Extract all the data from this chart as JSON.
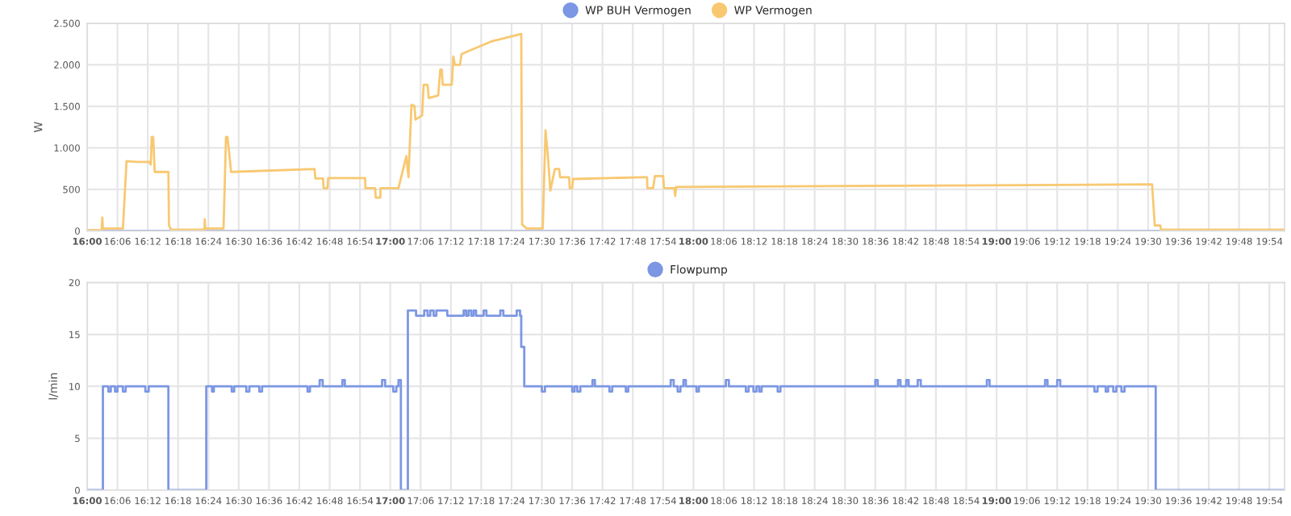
{
  "chart_data": [
    {
      "type": "line",
      "ylabel": "W",
      "ylim": [
        0,
        2500
      ],
      "yticks": [
        0,
        {
          "value": 500,
          "label": "500"
        },
        {
          "value": 1000,
          "label": "1.000"
        },
        {
          "value": 1500,
          "label": "1.500"
        },
        {
          "value": 2000,
          "label": "2.000"
        },
        {
          "value": 2500,
          "label": "2.500"
        }
      ],
      "xlim": [
        16,
        19.95
      ],
      "xticks": [
        {
          "value": 16.0,
          "label": "16:00"
        },
        {
          "value": 16.1,
          "label": "16:06"
        },
        {
          "value": 16.2,
          "label": "16:12"
        },
        {
          "value": 16.3,
          "label": "16:18"
        },
        {
          "value": 16.4,
          "label": "16:24"
        },
        {
          "value": 16.5,
          "label": "16:30"
        },
        {
          "value": 16.6,
          "label": "16:36"
        },
        {
          "value": 16.7,
          "label": "16:42"
        },
        {
          "value": 16.8,
          "label": "16:48"
        },
        {
          "value": 16.9,
          "label": "16:54"
        },
        {
          "value": 17.0,
          "label": "17:00"
        },
        {
          "value": 17.1,
          "label": "17:06"
        },
        {
          "value": 17.2,
          "label": "17:12"
        },
        {
          "value": 17.3,
          "label": "17:18"
        },
        {
          "value": 17.4,
          "label": "17:24"
        },
        {
          "value": 17.5,
          "label": "17:30"
        },
        {
          "value": 17.6,
          "label": "17:36"
        },
        {
          "value": 17.7,
          "label": "17:42"
        },
        {
          "value": 17.8,
          "label": "17:48"
        },
        {
          "value": 17.9,
          "label": "17:54"
        },
        {
          "value": 18.0,
          "label": "18:00"
        },
        {
          "value": 18.1,
          "label": "18:06"
        },
        {
          "value": 18.2,
          "label": "18:12"
        },
        {
          "value": 18.3,
          "label": "18:18"
        },
        {
          "value": 18.4,
          "label": "18:24"
        },
        {
          "value": 18.5,
          "label": "18:30"
        },
        {
          "value": 18.6,
          "label": "18:36"
        },
        {
          "value": 18.7,
          "label": "18:42"
        },
        {
          "value": 18.8,
          "label": "18:48"
        },
        {
          "value": 18.9,
          "label": "18:54"
        },
        {
          "value": 19.0,
          "label": "19:00"
        },
        {
          "value": 19.1,
          "label": "19:06"
        },
        {
          "value": 19.2,
          "label": "19:12"
        },
        {
          "value": 19.3,
          "label": "19:18"
        },
        {
          "value": 19.4,
          "label": "19:24"
        },
        {
          "value": 19.5,
          "label": "19:30"
        },
        {
          "value": 19.6,
          "label": "19:36"
        },
        {
          "value": 19.7,
          "label": "19:42"
        },
        {
          "value": 19.8,
          "label": "19:48"
        },
        {
          "value": 19.9,
          "label": "19:54"
        }
      ],
      "grid": true,
      "legend": "top",
      "marker": "none",
      "line_style": "solid",
      "series": [
        {
          "name": "WP BUH Vermogen",
          "color": "#7c97e3",
          "x": [
            16.0,
            19.948
          ],
          "values": [
            0,
            0
          ]
        },
        {
          "name": "WP Vermogen",
          "color": "#f8c871",
          "x": [
            16.0,
            16.048,
            16.05,
            16.052,
            16.118,
            16.13,
            16.167,
            16.205,
            16.21,
            16.213,
            16.218,
            16.223,
            16.268,
            16.27,
            16.277,
            16.387,
            16.388,
            16.39,
            16.45,
            16.458,
            16.463,
            16.475,
            16.75,
            16.753,
            16.778,
            16.78,
            16.793,
            16.795,
            16.917,
            16.918,
            16.95,
            16.952,
            16.967,
            16.968,
            17.027,
            17.053,
            17.06,
            17.07,
            17.08,
            17.083,
            17.105,
            17.11,
            17.123,
            17.127,
            17.158,
            17.165,
            17.17,
            17.173,
            17.203,
            17.208,
            17.213,
            17.23,
            17.235,
            17.333,
            17.432,
            17.435,
            17.45,
            17.503,
            17.512,
            17.52,
            17.528,
            17.543,
            17.557,
            17.56,
            17.59,
            17.592,
            17.6,
            17.603,
            17.828,
            17.847,
            17.848,
            17.867,
            17.873,
            17.9,
            17.903,
            17.937,
            17.94,
            17.943,
            19.513,
            19.522,
            19.54,
            19.543,
            19.948
          ],
          "values": [
            10,
            10,
            160,
            30,
            30,
            840,
            830,
            830,
            800,
            1130,
            1130,
            710,
            710,
            65,
            15,
            15,
            140,
            30,
            30,
            1130,
            1130,
            710,
            745,
            630,
            630,
            515,
            515,
            635,
            635,
            515,
            515,
            400,
            400,
            515,
            515,
            900,
            645,
            1520,
            1500,
            1340,
            1390,
            1760,
            1760,
            1600,
            1630,
            1940,
            1940,
            1760,
            1760,
            2100,
            2000,
            2000,
            2130,
            2280,
            2370,
            75,
            30,
            30,
            1210,
            900,
            485,
            745,
            745,
            645,
            645,
            515,
            515,
            625,
            645,
            645,
            515,
            515,
            660,
            660,
            515,
            515,
            420,
            530,
            560,
            65,
            65,
            15,
            15
          ]
        }
      ]
    },
    {
      "type": "step",
      "ylabel": "l/min",
      "ylim": [
        0,
        20
      ],
      "yticks": [
        0,
        5,
        10,
        15,
        20
      ],
      "xlim": [
        16,
        19.95
      ],
      "xticks": [
        {
          "value": 16.0,
          "label": "16:00"
        },
        {
          "value": 16.1,
          "label": "16:06"
        },
        {
          "value": 16.2,
          "label": "16:12"
        },
        {
          "value": 16.3,
          "label": "16:18"
        },
        {
          "value": 16.4,
          "label": "16:24"
        },
        {
          "value": 16.5,
          "label": "16:30"
        },
        {
          "value": 16.6,
          "label": "16:36"
        },
        {
          "value": 16.7,
          "label": "16:42"
        },
        {
          "value": 16.8,
          "label": "16:48"
        },
        {
          "value": 16.9,
          "label": "16:54"
        },
        {
          "value": 17.0,
          "label": "17:00"
        },
        {
          "value": 17.1,
          "label": "17:06"
        },
        {
          "value": 17.2,
          "label": "17:12"
        },
        {
          "value": 17.3,
          "label": "17:18"
        },
        {
          "value": 17.4,
          "label": "17:24"
        },
        {
          "value": 17.5,
          "label": "17:30"
        },
        {
          "value": 17.6,
          "label": "17:36"
        },
        {
          "value": 17.7,
          "label": "17:42"
        },
        {
          "value": 17.8,
          "label": "17:48"
        },
        {
          "value": 17.9,
          "label": "17:54"
        },
        {
          "value": 18.0,
          "label": "18:00"
        },
        {
          "value": 18.1,
          "label": "18:06"
        },
        {
          "value": 18.2,
          "label": "18:12"
        },
        {
          "value": 18.3,
          "label": "18:18"
        },
        {
          "value": 18.4,
          "label": "18:24"
        },
        {
          "value": 18.5,
          "label": "18:30"
        },
        {
          "value": 18.6,
          "label": "18:36"
        },
        {
          "value": 18.7,
          "label": "18:42"
        },
        {
          "value": 18.8,
          "label": "18:48"
        },
        {
          "value": 18.9,
          "label": "18:54"
        },
        {
          "value": 19.0,
          "label": "19:00"
        },
        {
          "value": 19.1,
          "label": "19:06"
        },
        {
          "value": 19.2,
          "label": "19:12"
        },
        {
          "value": 19.3,
          "label": "19:18"
        },
        {
          "value": 19.4,
          "label": "19:24"
        },
        {
          "value": 19.5,
          "label": "19:30"
        },
        {
          "value": 19.6,
          "label": "19:36"
        },
        {
          "value": 19.7,
          "label": "19:42"
        },
        {
          "value": 19.8,
          "label": "19:48"
        },
        {
          "value": 19.9,
          "label": "19:54"
        }
      ],
      "grid": true,
      "legend": "top",
      "marker": "none",
      "line_style": "solid",
      "series": [
        {
          "name": "Flowpump",
          "color": "#7c97e3",
          "x": [
            16.0,
            16.052,
            16.07,
            16.078,
            16.092,
            16.1,
            16.118,
            16.127,
            16.192,
            16.203,
            16.268,
            16.393,
            16.412,
            16.418,
            16.477,
            16.485,
            16.525,
            16.535,
            16.568,
            16.577,
            16.727,
            16.735,
            16.767,
            16.777,
            16.842,
            16.85,
            16.973,
            16.983,
            17.01,
            17.02,
            17.027,
            17.035,
            17.058,
            17.085,
            17.112,
            17.123,
            17.132,
            17.143,
            17.152,
            17.188,
            17.242,
            17.25,
            17.258,
            17.267,
            17.275,
            17.283,
            17.308,
            17.317,
            17.363,
            17.373,
            17.417,
            17.428,
            17.432,
            17.442,
            17.5,
            17.51,
            17.6,
            17.608,
            17.617,
            17.627,
            17.667,
            17.675,
            17.723,
            17.732,
            17.777,
            17.785,
            17.925,
            17.935,
            17.948,
            17.957,
            17.967,
            17.975,
            18.01,
            18.018,
            18.107,
            18.117,
            18.173,
            18.182,
            18.198,
            18.208,
            18.217,
            18.225,
            18.278,
            18.287,
            18.6,
            18.608,
            18.675,
            18.683,
            18.702,
            18.71,
            18.74,
            18.75,
            18.968,
            18.977,
            19.16,
            19.168,
            19.2,
            19.21,
            19.323,
            19.333,
            19.36,
            19.368,
            19.385,
            19.395,
            19.412,
            19.422,
            19.525,
            19.948
          ],
          "values": [
            0,
            10,
            9.5,
            10,
            9.5,
            10,
            9.5,
            10,
            9.5,
            10,
            0,
            10,
            9.5,
            10,
            9.5,
            10,
            9.5,
            10,
            9.5,
            10,
            9.5,
            10,
            10.6,
            10,
            10.6,
            10,
            10.6,
            10,
            9.5,
            10,
            10.6,
            0,
            17.3,
            16.8,
            17.3,
            16.8,
            17.3,
            16.8,
            17.3,
            16.8,
            17.3,
            16.8,
            17.3,
            16.8,
            17.3,
            16.8,
            17.3,
            16.8,
            17.3,
            16.8,
            17.3,
            16.8,
            13.8,
            10,
            9.5,
            10,
            9.5,
            10,
            9.5,
            10,
            10.6,
            10,
            9.5,
            10,
            9.5,
            10,
            10.6,
            10,
            9.5,
            10,
            10.6,
            10,
            9.5,
            10,
            10.6,
            10,
            9.5,
            10,
            9.5,
            10,
            9.5,
            10,
            9.5,
            10,
            10.6,
            10,
            10.6,
            10,
            10.6,
            10,
            10.6,
            10,
            10.6,
            10,
            10.6,
            10,
            10.6,
            10,
            9.5,
            10,
            9.5,
            10,
            9.5,
            10,
            9.5,
            10,
            0,
            0
          ]
        }
      ]
    }
  ]
}
